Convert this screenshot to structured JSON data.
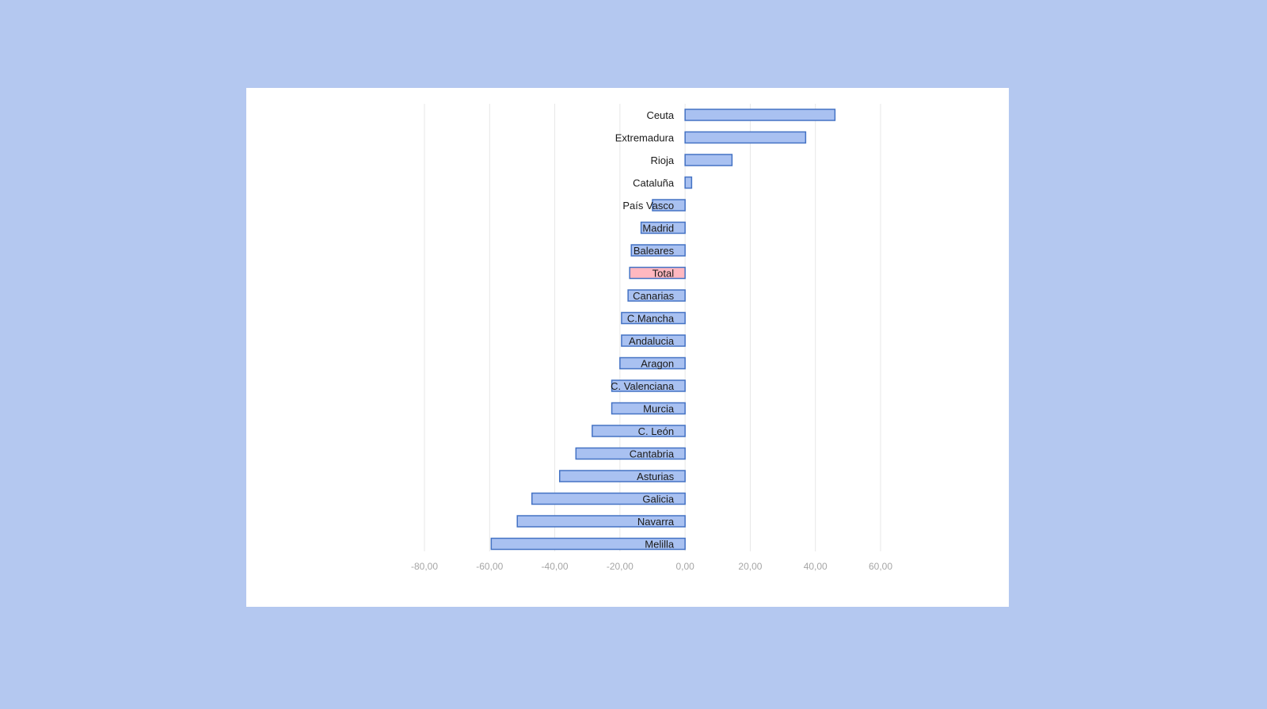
{
  "chart_data": {
    "type": "bar",
    "orientation": "horizontal",
    "title": "",
    "xlabel": "",
    "ylabel": "",
    "xlim": [
      -80,
      60
    ],
    "xticks": [
      -80,
      -60,
      -40,
      -20,
      0,
      20,
      40,
      60
    ],
    "tick_labels": [
      "-80,00",
      "-60,00",
      "-40,00",
      "-20,00",
      "0,00",
      "20,00",
      "40,00",
      "60,00"
    ],
    "grid": "vertical",
    "legend": "none",
    "categories": [
      "Ceuta",
      "Extremadura",
      "Rioja",
      "Cataluña",
      "País Vasco",
      "Madrid",
      "Baleares",
      "Total",
      "Canarias",
      "C.Mancha",
      "Andalucia",
      "Aragon",
      "C. Valenciana",
      "Murcia",
      "C. León",
      "Cantabria",
      "Asturias",
      "Galicia",
      "Navarra",
      "Melilla"
    ],
    "values": [
      46.0,
      37.0,
      14.4,
      2.0,
      -10.0,
      -13.5,
      -16.5,
      -17.0,
      -17.5,
      -19.5,
      -19.5,
      -20.0,
      -22.5,
      -22.5,
      -28.5,
      -33.5,
      -38.5,
      -47.0,
      -51.5,
      -59.5
    ],
    "colors": {
      "bar_fill": "#a9c1f1",
      "bar_stroke": "#4472c4",
      "highlight_fill": "#ffb8c0",
      "highlight_stroke": "#4472c4",
      "grid": "#e7e7e7"
    },
    "highlight": "Total"
  }
}
